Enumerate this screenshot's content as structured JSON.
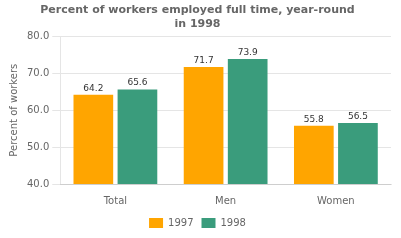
{
  "chart_data": {
    "type": "bar",
    "title": "Percent of workers employed full time, year-round\nin 1998",
    "categories": [
      "Total",
      "Men",
      "Women"
    ],
    "series": [
      {
        "name": "1997",
        "color": "#FFA500",
        "values": [
          64.2,
          71.7,
          55.8
        ]
      },
      {
        "name": "1998",
        "color": "#3A9C7C",
        "values": [
          65.6,
          73.9,
          56.5
        ]
      }
    ],
    "ylabel": "Percent of workers",
    "ylim": [
      40.0,
      80.0
    ],
    "yticks": [
      {
        "value": 40,
        "label": "40.0"
      },
      {
        "value": 50,
        "label": "50.0"
      },
      {
        "value": 60,
        "label": "60.0"
      },
      {
        "value": 70,
        "label": "70.0"
      },
      {
        "value": 80,
        "label": "80.0"
      }
    ],
    "grid": true,
    "legend": "bottom",
    "data_labels": true
  }
}
